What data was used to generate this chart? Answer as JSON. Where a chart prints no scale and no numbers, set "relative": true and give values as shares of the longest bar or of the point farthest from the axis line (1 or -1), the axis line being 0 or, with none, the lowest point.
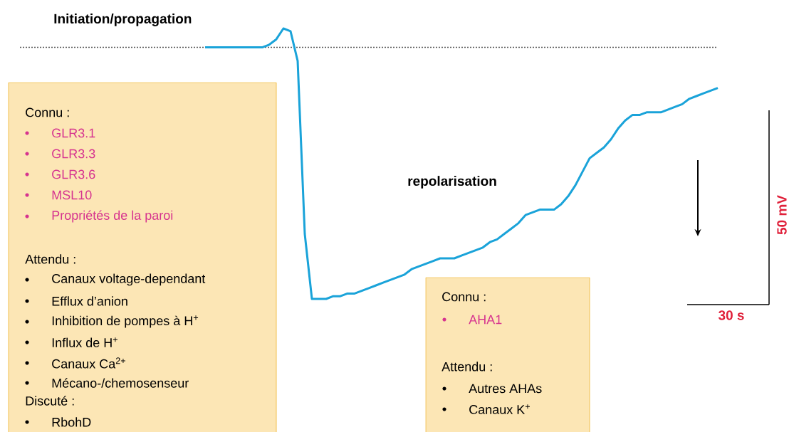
{
  "chart_data": {
    "type": "line",
    "relative": true,
    "categories": [
      null,
      null,
      null,
      null,
      null,
      null,
      null,
      null,
      null,
      null,
      null,
      null,
      null,
      null,
      null,
      null,
      null,
      null,
      null,
      null,
      null,
      null,
      null,
      null,
      null,
      null,
      null,
      null,
      null,
      null,
      null,
      null,
      null,
      null,
      null,
      null,
      null,
      null,
      null,
      null,
      null,
      null,
      null,
      null,
      null,
      null,
      null,
      null,
      null,
      null,
      null,
      null,
      null,
      null,
      null,
      null,
      null,
      null,
      null,
      null,
      null,
      null,
      null,
      null,
      null,
      null,
      null,
      null,
      null,
      null,
      null,
      null,
      null
    ],
    "series": [
      {
        "color": "#1aa3d9",
        "values": [
          0.93,
          0.93,
          0.93,
          0.93,
          0.93,
          0.93,
          0.93,
          0.93,
          0.93,
          0.94,
          0.96,
          1,
          0.99,
          0.88,
          0.24,
          0,
          0,
          0,
          0.01,
          0.01,
          0.02,
          0.02,
          0.03,
          0.04,
          0.05,
          0.06,
          0.07,
          0.08,
          0.09,
          0.11,
          0.12,
          0.13,
          0.14,
          0.15,
          0.15,
          0.15,
          0.16,
          0.17,
          0.18,
          0.19,
          0.21,
          0.22,
          0.24,
          0.26,
          0.28,
          0.31,
          0.32,
          0.33,
          0.33,
          0.33,
          0.35,
          0.38,
          0.42,
          0.47,
          0.52,
          0.54,
          0.56,
          0.59,
          0.63,
          0.66,
          0.68,
          0.68,
          0.69,
          0.69,
          0.69,
          0.7,
          0.71,
          0.72,
          0.74,
          0.75,
          0.76,
          0.77,
          0.78
        ]
      }
    ],
    "ref_lines": [
      {
        "axis": "y",
        "value": 0.93,
        "color": "#555555",
        "line_style": "dotted"
      }
    ],
    "annotations": [
      "Initiation/propagation",
      "repolarisation",
      "50 mV",
      "30 s",
      "Connu :",
      "GLR3.1",
      "GLR3.3",
      "GLR3.6",
      "MSL10",
      "Propriétés de la paroi",
      "Attendu :",
      "Canaux voltage-dependant",
      "Efflux d’anion",
      "Inhibition de pompes à H$^{+}$",
      "Influx de H$^{+}$",
      "Canaux Ca$^{2+}$",
      "Mécano-/chemosenseur",
      "Discuté :",
      "RbohD",
      "Connu :",
      "AHA1",
      "Attendu :",
      "Autres AHAs",
      "Canaux K$^{+}$"
    ]
  }
}
